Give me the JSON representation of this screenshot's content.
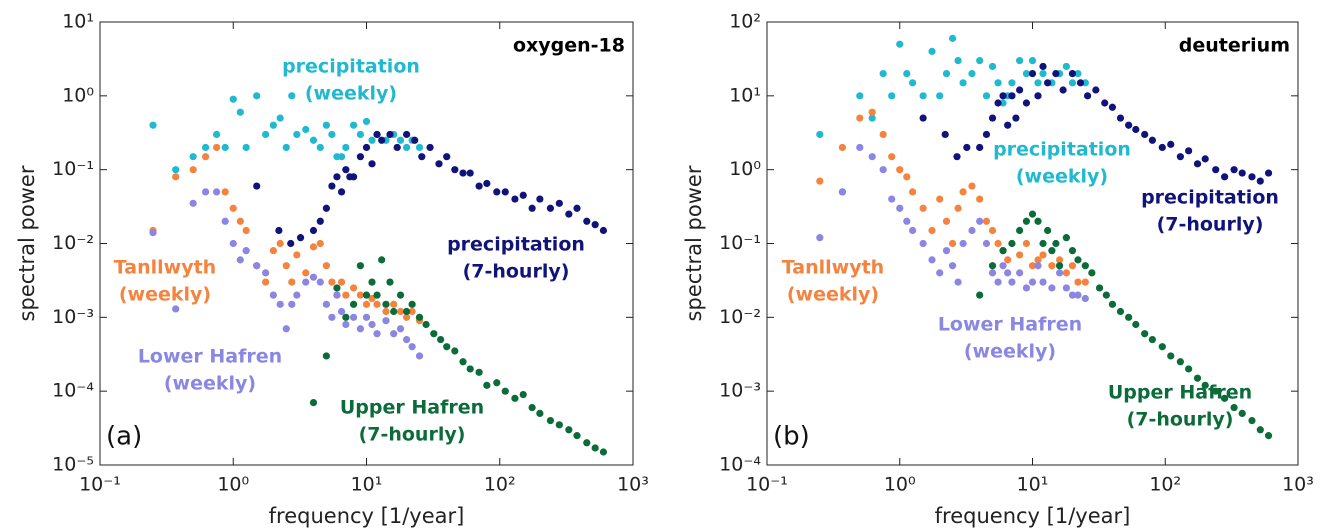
{
  "chart_data": [
    {
      "type": "scatter",
      "title": "oxygen-18",
      "panel_label": "(a)",
      "xlabel": "frequency [1/year]",
      "ylabel": "spectral power",
      "log_x": true,
      "log_y": true,
      "xlim": [
        0.1,
        1000
      ],
      "ylim": [
        1e-05,
        10
      ],
      "xticks": [
        {
          "value": 0.1,
          "label": "10⁻¹"
        },
        {
          "value": 1,
          "label": "10⁰"
        },
        {
          "value": 10,
          "label": "10¹"
        },
        {
          "value": 100,
          "label": "10²"
        },
        {
          "value": 1000,
          "label": "10³"
        }
      ],
      "yticks": [
        {
          "value": 1e-05,
          "label": "10⁻⁵"
        },
        {
          "value": 0.0001,
          "label": "10⁻⁴"
        },
        {
          "value": 0.001,
          "label": "10⁻³"
        },
        {
          "value": 0.01,
          "label": "10⁻²"
        },
        {
          "value": 0.1,
          "label": "10⁻¹"
        },
        {
          "value": 1,
          "label": "10⁰"
        },
        {
          "value": 10,
          "label": "10¹"
        }
      ],
      "series": [
        {
          "name": [
            "precipitation",
            "(weekly)"
          ],
          "color": "#20b9d0",
          "x": [
            0.25,
            0.37,
            0.5,
            0.62,
            0.75,
            0.87,
            1,
            1.13,
            1.25,
            1.5,
            1.75,
            2,
            2.25,
            2.5,
            2.75,
            3,
            3.5,
            4,
            4.5,
            5,
            5.5,
            6,
            6.5,
            7,
            8,
            9,
            10,
            11,
            12,
            14,
            16,
            18,
            20,
            22,
            25
          ],
          "values": [
            0.4,
            0.1,
            0.15,
            0.2,
            0.3,
            0.2,
            0.9,
            0.6,
            0.2,
            1,
            0.3,
            0.4,
            0.5,
            0.2,
            1,
            0.3,
            0.35,
            0.25,
            0.2,
            0.4,
            0.3,
            0.15,
            0.15,
            0.2,
            0.4,
            0.3,
            0.45,
            0.25,
            0.3,
            0.25,
            0.3,
            0.25,
            0.2,
            0.25,
            0.2
          ]
        },
        {
          "name": [
            "precipitation",
            "(7-hourly)"
          ],
          "color": "#10137a",
          "x": [
            1.5,
            2.2,
            2.7,
            3.2,
            4,
            4.5,
            5,
            5.5,
            6,
            6.5,
            7,
            7.5,
            8,
            9,
            10,
            11,
            12,
            13,
            15,
            17,
            20,
            23,
            26,
            30,
            35,
            40,
            46,
            53,
            60,
            70,
            80,
            95,
            110,
            130,
            150,
            175,
            200,
            240,
            280,
            330,
            380,
            450,
            520,
            600
          ],
          "values": [
            0.06,
            0.015,
            0.01,
            0.012,
            0.015,
            0.02,
            0.03,
            0.06,
            0.08,
            0.05,
            0.1,
            0.08,
            0.08,
            0.15,
            0.2,
            0.12,
            0.3,
            0.25,
            0.3,
            0.2,
            0.3,
            0.25,
            0.15,
            0.2,
            0.12,
            0.15,
            0.1,
            0.09,
            0.09,
            0.06,
            0.065,
            0.05,
            0.05,
            0.04,
            0.045,
            0.03,
            0.04,
            0.03,
            0.035,
            0.025,
            0.03,
            0.02,
            0.018,
            0.015
          ]
        },
        {
          "name": [
            "Tanllwyth",
            "(weekly)"
          ],
          "color": "#f5833d",
          "x": [
            0.25,
            0.37,
            0.5,
            0.62,
            0.75,
            0.87,
            1,
            1.13,
            1.25,
            1.5,
            1.75,
            2,
            2.25,
            2.5,
            2.75,
            3,
            3.5,
            4,
            4.5,
            5,
            5.5,
            6,
            6.5,
            7,
            8,
            9,
            10,
            11,
            12,
            14,
            16,
            18,
            20,
            22,
            25
          ],
          "values": [
            0.015,
            0.08,
            0.1,
            0.15,
            0.2,
            0.05,
            0.03,
            0.02,
            0.015,
            0.005,
            0.003,
            0.008,
            0.01,
            0.005,
            0.003,
            0.007,
            0.004,
            0.009,
            0.01,
            0.005,
            0.003,
            0.002,
            0.003,
            0.002,
            0.0025,
            0.002,
            0.0015,
            0.0018,
            0.0015,
            0.0012,
            0.0015,
            0.0012,
            0.001,
            0.0012,
            0.0009
          ]
        },
        {
          "name": [
            "Lower Hafren",
            "(weekly)"
          ],
          "color": "#8a86e2",
          "x": [
            0.25,
            0.37,
            0.5,
            0.62,
            0.75,
            0.87,
            1,
            1.13,
            1.25,
            1.5,
            1.75,
            2,
            2.25,
            2.5,
            2.75,
            3,
            3.5,
            4,
            4.5,
            5,
            5.5,
            6,
            6.5,
            7,
            8,
            9,
            10,
            11,
            12,
            14,
            16,
            18,
            20,
            22,
            25
          ],
          "values": [
            0.014,
            0.0013,
            0.035,
            0.05,
            0.05,
            0.02,
            0.01,
            0.006,
            0.008,
            0.005,
            0.004,
            0.002,
            0.0015,
            0.0007,
            0.0015,
            0.002,
            0.003,
            0.0035,
            0.003,
            0.0015,
            0.001,
            0.002,
            0.0012,
            0.0008,
            0.001,
            0.0007,
            0.001,
            0.0008,
            0.0006,
            0.0009,
            0.0006,
            0.0007,
            0.0005,
            0.0004,
            0.0003
          ]
        },
        {
          "name": [
            "Upper Hafren",
            "(7-hourly)"
          ],
          "color": "#0b6b39",
          "x": [
            4,
            5,
            6,
            7,
            8,
            9,
            10,
            11,
            12,
            13,
            14,
            15,
            16,
            18,
            20,
            22,
            25,
            28,
            32,
            36,
            40,
            46,
            53,
            60,
            70,
            80,
            95,
            110,
            130,
            150,
            175,
            200,
            240,
            280,
            330,
            380,
            450,
            520,
            600
          ],
          "values": [
            7e-05,
            0.0003,
            0.0025,
            0.001,
            0.0015,
            0.005,
            0.002,
            0.003,
            0.002,
            0.006,
            0.0015,
            0.003,
            0.0012,
            0.002,
            0.0012,
            0.0015,
            0.001,
            0.0008,
            0.0006,
            0.0005,
            0.0004,
            0.00035,
            0.00025,
            0.0002,
            0.00018,
            0.00012,
            0.00013,
            0.0001,
            8e-05,
            9e-05,
            6e-05,
            5e-05,
            4e-05,
            3.5e-05,
            3e-05,
            2.5e-05,
            2e-05,
            1.7e-05,
            1.5e-05
          ]
        }
      ]
    },
    {
      "type": "scatter",
      "title": "deuterium",
      "panel_label": "(b)",
      "xlabel": "frequency [1/year]",
      "ylabel": "spectral power",
      "log_x": true,
      "log_y": true,
      "xlim": [
        0.1,
        1000
      ],
      "ylim": [
        0.0001,
        100
      ],
      "xticks": [
        {
          "value": 0.1,
          "label": "10⁻¹"
        },
        {
          "value": 1,
          "label": "10⁰"
        },
        {
          "value": 10,
          "label": "10¹"
        },
        {
          "value": 100,
          "label": "10²"
        },
        {
          "value": 1000,
          "label": "10³"
        }
      ],
      "yticks": [
        {
          "value": 0.0001,
          "label": "10⁻⁴"
        },
        {
          "value": 0.001,
          "label": "10⁻³"
        },
        {
          "value": 0.01,
          "label": "10⁻²"
        },
        {
          "value": 0.1,
          "label": "10⁻¹"
        },
        {
          "value": 1,
          "label": "10⁰"
        },
        {
          "value": 10,
          "label": "10¹"
        },
        {
          "value": 100,
          "label": "10²"
        }
      ],
      "series": [
        {
          "name": [
            "precipitation",
            "(weekly)"
          ],
          "color": "#20b9d0",
          "x": [
            0.25,
            0.37,
            0.5,
            0.62,
            0.75,
            0.87,
            1,
            1.13,
            1.25,
            1.5,
            1.75,
            2,
            2.25,
            2.5,
            2.75,
            3,
            3.5,
            4,
            4.5,
            5,
            5.5,
            6,
            6.5,
            7,
            8,
            9,
            10,
            11,
            12,
            14,
            16,
            18,
            20,
            22,
            25
          ],
          "values": [
            3,
            0.5,
            10,
            5,
            20,
            10,
            50,
            20,
            15,
            10,
            40,
            10,
            20,
            60,
            30,
            15,
            20,
            30,
            10,
            25,
            15,
            8,
            10,
            15,
            30,
            20,
            30,
            15,
            20,
            15,
            20,
            25,
            15,
            20,
            15
          ]
        },
        {
          "name": [
            "precipitation",
            "(7-hourly)"
          ],
          "color": "#10137a",
          "x": [
            1.5,
            2.2,
            2.7,
            3.2,
            4,
            4.5,
            5,
            5.5,
            6,
            6.5,
            7,
            7.5,
            8,
            9,
            10,
            11,
            12,
            13,
            15,
            17,
            20,
            23,
            26,
            30,
            35,
            40,
            46,
            53,
            60,
            70,
            80,
            95,
            110,
            130,
            150,
            175,
            200,
            240,
            280,
            330,
            380,
            450,
            520,
            600
          ],
          "values": [
            5,
            3,
            1.5,
            2,
            2,
            3,
            5,
            8,
            10,
            4,
            10,
            5,
            12,
            8,
            20,
            10,
            25,
            15,
            20,
            12,
            20,
            15,
            10,
            12,
            8,
            7,
            5,
            4,
            3.5,
            3,
            2.5,
            2,
            2.2,
            1.5,
            1.8,
            1.2,
            1.4,
            1,
            0.8,
            1,
            0.9,
            0.8,
            0.7,
            0.9
          ]
        },
        {
          "name": [
            "Tanllwyth",
            "(weekly)"
          ],
          "color": "#f5833d",
          "x": [
            0.25,
            0.37,
            0.5,
            0.62,
            0.75,
            0.87,
            1,
            1.13,
            1.25,
            1.5,
            1.75,
            2,
            2.25,
            2.5,
            2.75,
            3,
            3.5,
            4,
            4.5,
            5,
            5.5,
            6,
            6.5,
            7,
            8,
            9,
            10,
            11,
            12,
            14,
            16,
            18,
            20,
            22,
            25
          ],
          "values": [
            0.7,
            2,
            5,
            6,
            3,
            1.5,
            1,
            0.8,
            0.5,
            0.3,
            0.15,
            0.4,
            0.2,
            0.1,
            0.3,
            0.5,
            0.6,
            0.4,
            0.2,
            0.15,
            0.1,
            0.08,
            0.06,
            0.1,
            0.07,
            0.1,
            0.05,
            0.06,
            0.07,
            0.05,
            0.06,
            0.04,
            0.05,
            0.03,
            0.03
          ]
        },
        {
          "name": [
            "Lower Hafren",
            "(weekly)"
          ],
          "color": "#8a86e2",
          "x": [
            0.25,
            0.37,
            0.5,
            0.62,
            0.75,
            0.87,
            1,
            1.13,
            1.25,
            1.5,
            1.75,
            2,
            2.25,
            2.5,
            2.75,
            3,
            3.5,
            4,
            4.5,
            5,
            5.5,
            6,
            6.5,
            7,
            8,
            9,
            10,
            11,
            12,
            14,
            16,
            18,
            20,
            22,
            25
          ],
          "values": [
            0.12,
            0.5,
            2,
            1.5,
            1,
            0.4,
            0.3,
            0.2,
            0.15,
            0.1,
            0.06,
            0.04,
            0.08,
            0.05,
            0.03,
            0.1,
            0.15,
            0.2,
            0.1,
            0.04,
            0.03,
            0.05,
            0.04,
            0.03,
            0.04,
            0.025,
            0.03,
            0.05,
            0.03,
            0.025,
            0.04,
            0.025,
            0.02,
            0.02,
            0.018
          ]
        },
        {
          "name": [
            "Upper Hafren",
            "(7-hourly)"
          ],
          "color": "#0b6b39",
          "x": [
            4,
            5,
            6,
            7,
            8,
            9,
            10,
            11,
            12,
            13,
            14,
            15,
            16,
            18,
            20,
            22,
            25,
            28,
            32,
            36,
            40,
            46,
            53,
            60,
            70,
            80,
            95,
            110,
            130,
            150,
            175,
            200,
            240,
            280,
            330,
            380,
            450,
            520,
            600
          ],
          "values": [
            0.02,
            0.05,
            0.08,
            0.1,
            0.15,
            0.2,
            0.25,
            0.2,
            0.1,
            0.15,
            0.08,
            0.1,
            0.05,
            0.12,
            0.08,
            0.06,
            0.05,
            0.04,
            0.025,
            0.02,
            0.015,
            0.012,
            0.01,
            0.008,
            0.006,
            0.005,
            0.004,
            0.003,
            0.0025,
            0.002,
            0.0015,
            0.0012,
            0.001,
            0.0008,
            0.0006,
            0.0005,
            0.0004,
            0.0003,
            0.00025
          ]
        }
      ]
    }
  ]
}
